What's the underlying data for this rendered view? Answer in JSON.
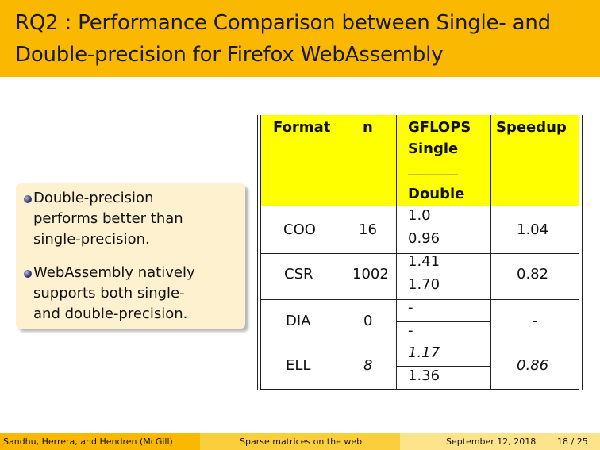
{
  "slide": {
    "title_line1": "RQ2 : Performance Comparison between Single- and",
    "title_line2": "Double-precision for Firefox WebAssembly",
    "bullets": [
      [
        "Double-precision",
        "performs better than",
        "single-precision."
      ],
      [
        "WebAssembly natively",
        "supports both single-",
        "and double-precision."
      ]
    ]
  },
  "table": {
    "headers": {
      "format": "Format",
      "n": "n",
      "gflops_line1": "GFLOPS",
      "gflops_line2": "Single",
      "gflops_separator": "_______",
      "gflops_line3": "Double",
      "speedup": "Speedup"
    },
    "rows": [
      {
        "format": "COO",
        "n": "16",
        "single": "1.0",
        "double": "0.96",
        "speedup": "1.04",
        "italic": false
      },
      {
        "format": "CSR",
        "n": "1002",
        "single": "1.41",
        "double": "1.70",
        "speedup": "0.82",
        "italic": false
      },
      {
        "format": "DIA",
        "n": "0",
        "single": "-",
        "double": "-",
        "speedup": "-",
        "italic": false
      },
      {
        "format": "ELL",
        "n": "8",
        "single": "1.17",
        "double": "1.36",
        "speedup": "0.86",
        "italic": true
      }
    ],
    "header_color": "#ffff00"
  },
  "footer": {
    "authors": "Sandhu, Herrera, and Hendren  (McGill)",
    "talk_title": "Sparse matrices on the web",
    "date": "September 12, 2018",
    "page": "18 / 25"
  },
  "colors": {
    "title_bar": "#fbb800",
    "callout_bg": "#fdf1cf"
  }
}
